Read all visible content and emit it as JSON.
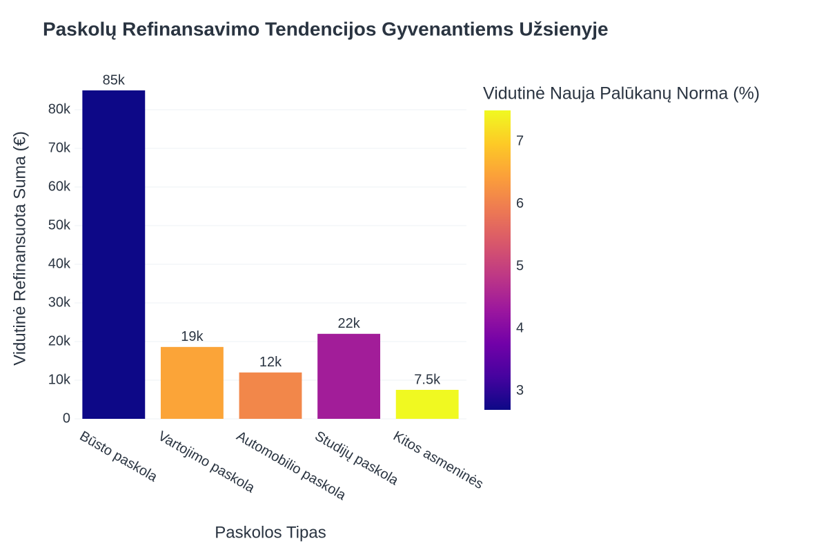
{
  "chart_data": {
    "type": "bar",
    "title": "Paskolų Refinansavimo Tendencijos Gyvenantiems Užsienyje",
    "x_label": "Paskolos Tipas",
    "y_label": "Vidutinė Refinansuota Suma (€)",
    "categories": [
      "Būsto paskola",
      "Vartojimo paskola",
      "Automobilio paskola",
      "Studijų paskola",
      "Kitos asmeninės"
    ],
    "values": [
      85000,
      18600,
      12000,
      22000,
      7500
    ],
    "value_labels": [
      "85k",
      "19k",
      "12k",
      "22k",
      "7.5k"
    ],
    "color_values": [
      2.7,
      6.5,
      6.1,
      4.4,
      7.5
    ],
    "colorbar_title": "Vidutinė Nauja Palūkanų Norma (%)",
    "clim": [
      2.7,
      7.5
    ],
    "cticks": [
      3,
      4,
      5,
      6,
      7
    ],
    "colorscale": [
      "#0d0887",
      "#46039f",
      "#7201a8",
      "#9c179e",
      "#bd3786",
      "#d8576b",
      "#ed7953",
      "#fb9f3a",
      "#fdca26",
      "#f0f921"
    ],
    "ylim": [
      0,
      90000
    ],
    "yticks": [
      0,
      {
        "value": 10000,
        "label": "10k"
      },
      {
        "value": 20000,
        "label": "20k"
      },
      {
        "value": 30000,
        "label": "30k"
      },
      {
        "value": 40000,
        "label": "40k"
      },
      {
        "value": 50000,
        "label": "50k"
      },
      {
        "value": 60000,
        "label": "60k"
      },
      {
        "value": 70000,
        "label": "70k"
      },
      {
        "value": 80000,
        "label": "80k"
      }
    ],
    "grid": true
  }
}
